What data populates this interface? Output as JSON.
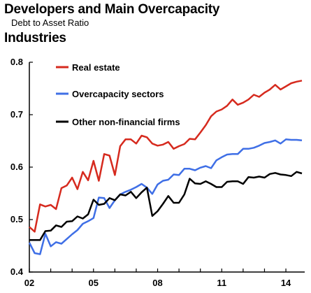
{
  "title_line1": "Developers and Main Overcapacity",
  "title_line2": "Industries",
  "subtitle": "Debt to Asset Ratio",
  "chart_data": {
    "type": "line",
    "title": "Developers and Main Overcapacity Industries",
    "subtitle": "Debt to Asset Ratio",
    "xlabel": "",
    "ylabel": "",
    "ylim": [
      0.4,
      0.8
    ],
    "yticks": [
      0.4,
      0.5,
      0.6,
      0.7,
      0.8
    ],
    "ytick_labels": [
      "0.4",
      "0.5",
      "0.6",
      "0.7",
      "0.8"
    ],
    "xlim": [
      2002.0,
      2014.75
    ],
    "xticks": [
      2002,
      2005,
      2008,
      2011,
      2014
    ],
    "xtick_labels": [
      "02",
      "05",
      "08",
      "11",
      "14"
    ],
    "grid": false,
    "legend_position": "top-left",
    "x": [
      2002.0,
      2002.25,
      2002.5,
      2002.75,
      2003.0,
      2003.25,
      2003.5,
      2003.75,
      2004.0,
      2004.25,
      2004.5,
      2004.75,
      2005.0,
      2005.25,
      2005.5,
      2005.75,
      2006.0,
      2006.25,
      2006.5,
      2006.75,
      2007.0,
      2007.25,
      2007.5,
      2007.75,
      2008.0,
      2008.25,
      2008.5,
      2008.75,
      2009.0,
      2009.25,
      2009.5,
      2009.75,
      2010.0,
      2010.25,
      2010.5,
      2010.75,
      2011.0,
      2011.25,
      2011.5,
      2011.75,
      2012.0,
      2012.25,
      2012.5,
      2012.75,
      2013.0,
      2013.25,
      2013.5,
      2013.75,
      2014.0,
      2014.25,
      2014.5,
      2014.75
    ],
    "series": [
      {
        "name": "Real estate",
        "color": "#d62a1e",
        "values": [
          0.486,
          0.477,
          0.529,
          0.525,
          0.528,
          0.52,
          0.56,
          0.565,
          0.58,
          0.558,
          0.591,
          0.575,
          0.612,
          0.574,
          0.625,
          0.622,
          0.585,
          0.64,
          0.653,
          0.653,
          0.645,
          0.66,
          0.657,
          0.645,
          0.641,
          0.643,
          0.648,
          0.635,
          0.64,
          0.644,
          0.654,
          0.653,
          0.666,
          0.68,
          0.697,
          0.706,
          0.71,
          0.717,
          0.729,
          0.719,
          0.723,
          0.729,
          0.738,
          0.734,
          0.742,
          0.748,
          0.757,
          0.748,
          0.754,
          0.76,
          0.763,
          0.765
        ]
      },
      {
        "name": "Overcapacity sectors",
        "color": "#3f6fe6",
        "values": [
          0.456,
          0.436,
          0.434,
          0.473,
          0.449,
          0.457,
          0.454,
          0.463,
          0.472,
          0.48,
          0.492,
          0.497,
          0.503,
          0.542,
          0.541,
          0.522,
          0.537,
          0.548,
          0.553,
          0.557,
          0.562,
          0.568,
          0.561,
          0.549,
          0.567,
          0.574,
          0.576,
          0.586,
          0.585,
          0.597,
          0.597,
          0.594,
          0.599,
          0.602,
          0.598,
          0.613,
          0.619,
          0.624,
          0.625,
          0.625,
          0.635,
          0.635,
          0.637,
          0.641,
          0.646,
          0.648,
          0.651,
          0.645,
          0.653,
          0.652,
          0.652,
          0.651
        ]
      },
      {
        "name": "Other non-financial firms",
        "color": "#000000",
        "values": [
          0.461,
          0.461,
          0.461,
          0.478,
          0.479,
          0.489,
          0.486,
          0.496,
          0.497,
          0.506,
          0.502,
          0.51,
          0.538,
          0.528,
          0.53,
          0.541,
          0.537,
          0.548,
          0.546,
          0.553,
          0.541,
          0.552,
          0.561,
          0.507,
          0.516,
          0.53,
          0.545,
          0.532,
          0.532,
          0.548,
          0.578,
          0.569,
          0.568,
          0.573,
          0.568,
          0.562,
          0.562,
          0.572,
          0.573,
          0.573,
          0.568,
          0.581,
          0.58,
          0.582,
          0.58,
          0.587,
          0.589,
          0.586,
          0.585,
          0.583,
          0.591,
          0.588
        ]
      }
    ]
  }
}
